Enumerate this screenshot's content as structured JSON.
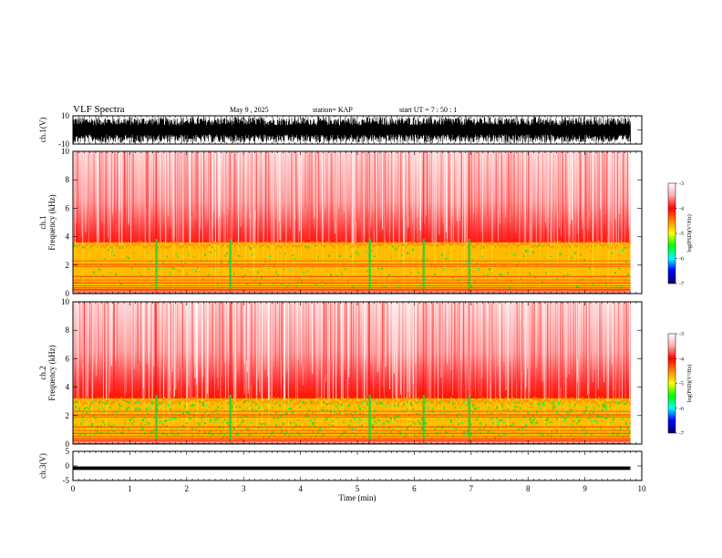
{
  "header": {
    "title": "VLF Spectra",
    "date": "May 9  , 2025",
    "station": "station= KAP",
    "start": "start  UT  =   7 : 50 : 1"
  },
  "chart_data": [
    {
      "type": "line",
      "name": "ch1-waveform",
      "ylabel": "ch.1(V)",
      "ylim": [
        -10,
        10
      ],
      "yticks": [
        "10",
        "-10"
      ],
      "xlim": [
        0,
        10
      ],
      "data_end_min": 9.8
    },
    {
      "type": "heatmap",
      "name": "ch1-spectrogram",
      "ylabel": "ch.1\nFrequency  (kHz)",
      "ylim": [
        0,
        10
      ],
      "yticks": [
        "0",
        "2",
        "4",
        "6",
        "8",
        "10"
      ],
      "xlim": [
        0,
        10
      ],
      "data_end_min": 9.8,
      "colorbar": {
        "label": "log(PSD)(V²/Hz)",
        "range": [
          -7,
          -3
        ],
        "ticks": [
          "-3",
          "-4",
          "-5",
          "-6",
          "-7"
        ]
      }
    },
    {
      "type": "heatmap",
      "name": "ch2-spectrogram",
      "ylabel": "ch.2\nFrequency  (kHz)",
      "ylim": [
        0,
        10
      ],
      "yticks": [
        "0",
        "2",
        "4",
        "6",
        "8",
        "10"
      ],
      "xlim": [
        0,
        10
      ],
      "data_end_min": 9.8,
      "colorbar": {
        "label": "log(PSD)(V²/Hz)",
        "range": [
          -7,
          -3
        ],
        "ticks": [
          "-3",
          "-4",
          "-5",
          "-6",
          "-7"
        ]
      }
    },
    {
      "type": "line",
      "name": "ch3-waveform",
      "ylabel": "ch.3(V)",
      "ylim": [
        -5,
        5
      ],
      "yticks": [
        "5",
        "0",
        "-5"
      ],
      "xlim": [
        0,
        10
      ],
      "data_end_min": 9.8,
      "xlabel": "Time  (min)",
      "xticks": [
        "0",
        "1",
        "2",
        "3",
        "4",
        "5",
        "6",
        "7",
        "8",
        "9",
        "10"
      ]
    }
  ]
}
